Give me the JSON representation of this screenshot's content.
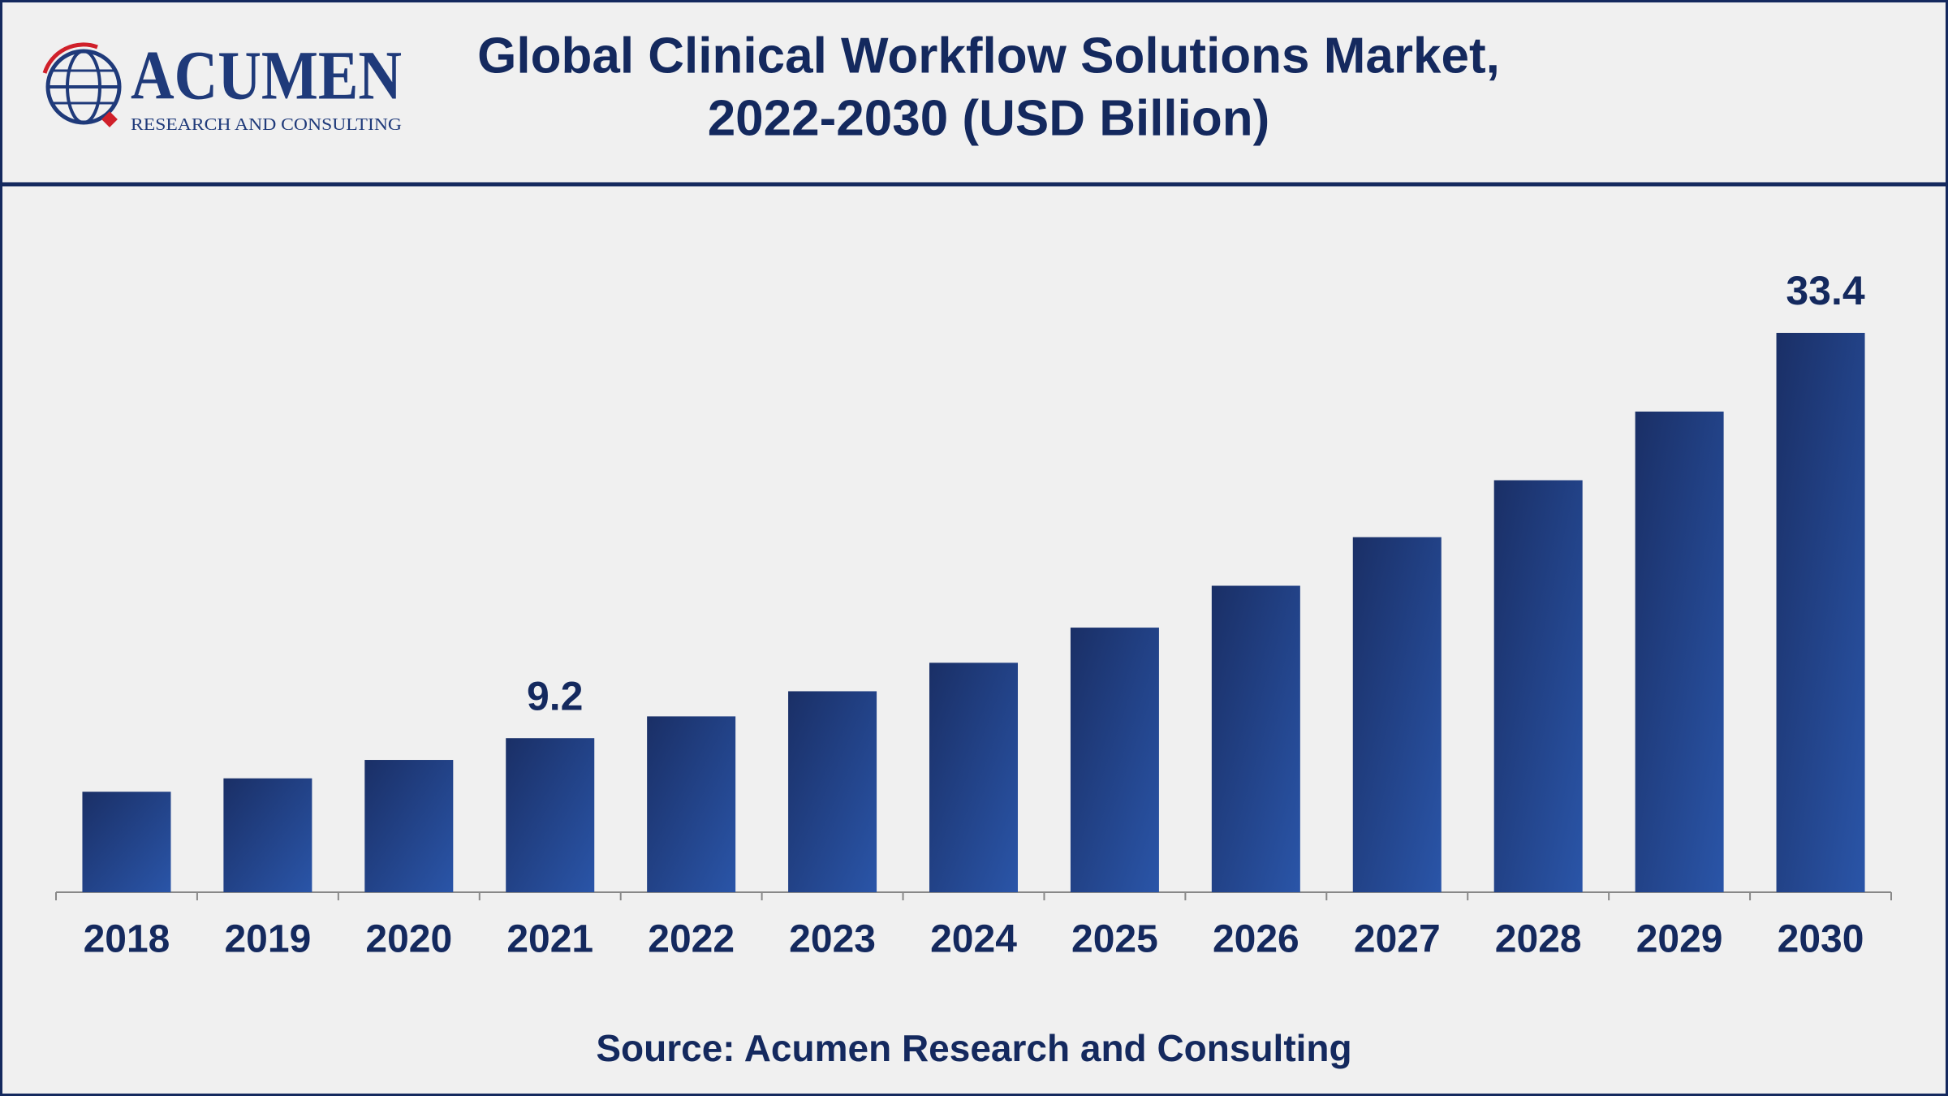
{
  "logo": {
    "name": "ACUMEN",
    "tagline": "RESEARCH AND CONSULTING"
  },
  "chart_data": {
    "type": "bar",
    "title": [
      "Global Clinical Workflow Solutions Market,",
      "2022-2030 (USD Billion)"
    ],
    "categories": [
      "2018",
      "2019",
      "2020",
      "2021",
      "2022",
      "2023",
      "2024",
      "2025",
      "2026",
      "2027",
      "2028",
      "2029",
      "2030"
    ],
    "values": [
      6.0,
      6.8,
      7.9,
      9.2,
      10.5,
      12.0,
      13.7,
      15.8,
      18.3,
      21.2,
      24.6,
      28.7,
      33.4
    ],
    "value_labels": [
      null,
      null,
      null,
      "9.2",
      null,
      null,
      null,
      null,
      null,
      null,
      null,
      null,
      "33.4"
    ],
    "color": "#1f3a7a",
    "source": "Source: Acumen Research and Consulting"
  }
}
